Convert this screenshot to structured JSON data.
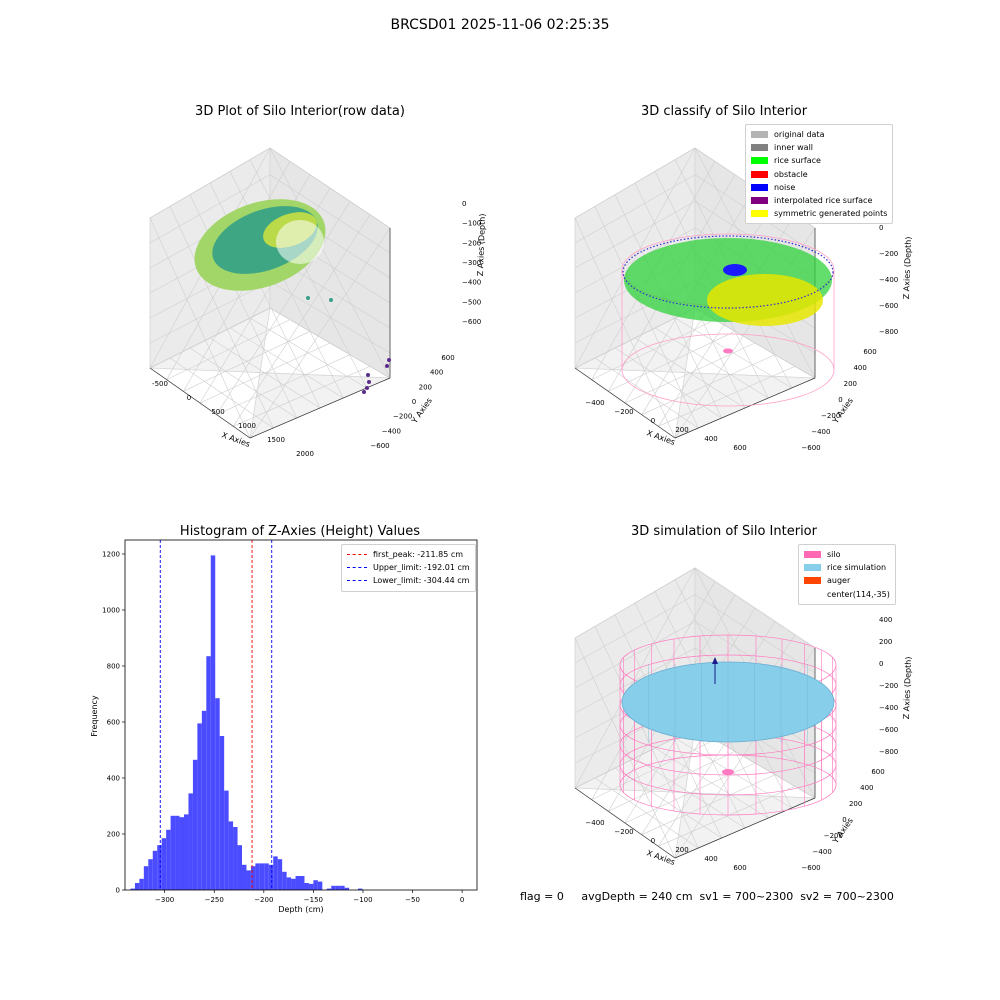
{
  "suptitle": "BRCSD01 2025-11-06 02:25:35",
  "panels": {
    "raw": {
      "title": "3D Plot of Silo Interior(row data)",
      "xlabel": "X Axies",
      "ylabel": "Y Axies",
      "zlabel": "Z Axies (Depth)",
      "xticks": [
        "-500",
        "0",
        "500",
        "1000",
        "1500",
        "2000"
      ],
      "yticks": [
        "600",
        "400",
        "200",
        "0",
        "−200",
        "−400",
        "−600"
      ],
      "zticks": [
        "0",
        "−100",
        "−200",
        "−300",
        "−400",
        "−500",
        "−600"
      ]
    },
    "classify": {
      "title": "3D classify of Silo Interior",
      "xlabel": "X Axies",
      "ylabel": "Y Axies",
      "zlabel": "Z Axies (Depth)",
      "xticks": [
        "−400",
        "−200",
        "0",
        "200",
        "400",
        "600"
      ],
      "yticks": [
        "600",
        "400",
        "200",
        "0",
        "−200",
        "−400",
        "−600"
      ],
      "zticks": [
        "200",
        "0",
        "−200",
        "−400",
        "−600",
        "−800"
      ],
      "legend": [
        {
          "label": "original data",
          "color": "#b4b4b4"
        },
        {
          "label": "inner wall",
          "color": "#808080"
        },
        {
          "label": "rice surface",
          "color": "#00ff00"
        },
        {
          "label": "obstacle",
          "color": "#ff0000"
        },
        {
          "label": "noise",
          "color": "#0000ff"
        },
        {
          "label": "interpolated rice surface",
          "color": "#800080"
        },
        {
          "label": "symmetric generated points",
          "color": "#ffff00"
        }
      ]
    },
    "simulation": {
      "title": "3D simulation of Silo Interior",
      "xlabel": "X Axies",
      "ylabel": "Y Axies",
      "zlabel": "Z Axies (Depth)",
      "xticks": [
        "−400",
        "−200",
        "0",
        "200",
        "400",
        "600"
      ],
      "yticks": [
        "600",
        "400",
        "200",
        "0",
        "−200",
        "−400",
        "−600"
      ],
      "zticks": [
        "400",
        "200",
        "0",
        "−200",
        "−400",
        "−600",
        "−800"
      ],
      "legend": [
        {
          "label": "silo",
          "color": "#ff69b4"
        },
        {
          "label": "rice simulation",
          "color": "#87ceeb"
        },
        {
          "label": "auger",
          "color": "#ff4500"
        },
        {
          "label": "center(114,-35)",
          "color": ""
        }
      ]
    }
  },
  "chart_data": {
    "type": "bar",
    "title": "Histogram of Z-Axies (Height) Values",
    "xlabel": "Depth (cm)",
    "ylabel": "Frequency",
    "xlim": [
      -340,
      15
    ],
    "ylim": [
      0,
      1250
    ],
    "xticks": [
      -300,
      -250,
      -200,
      -150,
      -100,
      -50,
      0
    ],
    "xtick_labels": [
      "−300",
      "−250",
      "−200",
      "−150",
      "−100",
      "−50",
      "0"
    ],
    "yticks": [
      0,
      200,
      400,
      600,
      800,
      1000,
      1200
    ],
    "bin_start": -334.5,
    "bin_width": 4.5,
    "values": [
      5,
      25,
      40,
      85,
      110,
      140,
      160,
      185,
      215,
      265,
      265,
      260,
      270,
      345,
      465,
      595,
      640,
      835,
      1195,
      685,
      550,
      355,
      245,
      225,
      160,
      90,
      70,
      85,
      95,
      95,
      95,
      90,
      120,
      110,
      65,
      45,
      40,
      50,
      50,
      25,
      22,
      35,
      30,
      0,
      5,
      15,
      15,
      15,
      8,
      0,
      0,
      5
    ],
    "bar_color": "#4b4bff",
    "lines": [
      {
        "label": "first_peak: -211.85 cm",
        "x": -211.85,
        "color": "#ff0000"
      },
      {
        "label": "Upper_limit: -192.01 cm",
        "x": -192.01,
        "color": "#0000ff"
      },
      {
        "label": "Lower_limit: -304.44 cm",
        "x": -304.44,
        "color": "#0000ff"
      }
    ],
    "legend_position": "upper right"
  },
  "footer": "flag = 0     avgDepth = 240 cm  sv1 = 700~2300  sv2 = 700~2300"
}
